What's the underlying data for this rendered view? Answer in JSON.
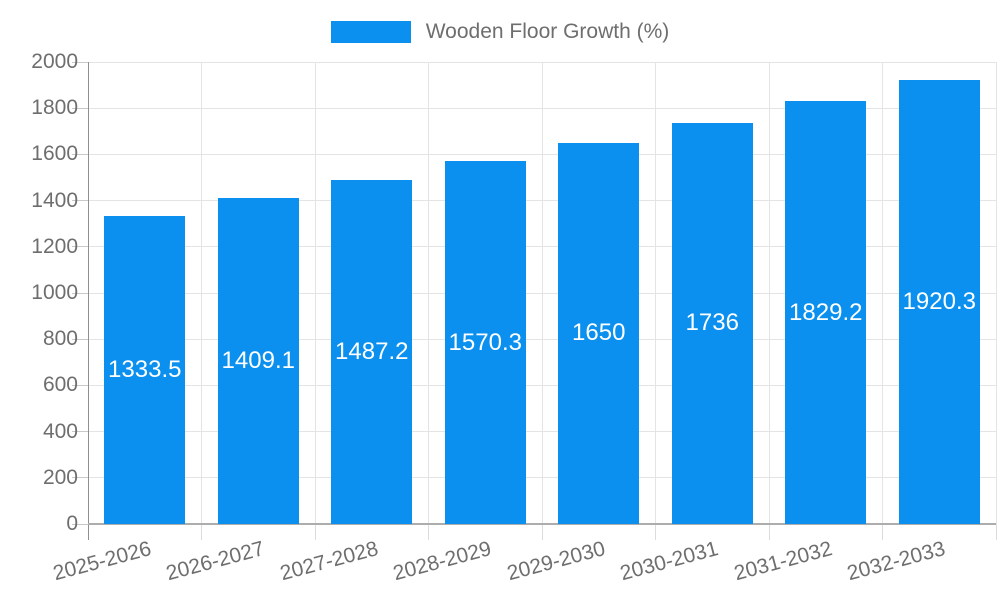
{
  "legend": {
    "label": "Wooden Floor Growth (%)"
  },
  "chart_data": {
    "type": "bar",
    "title": "",
    "xlabel": "",
    "ylabel": "",
    "series_name": "Wooden Floor Growth (%)",
    "categories": [
      "2025-2026",
      "2026-2027",
      "2027-2028",
      "2028-2029",
      "2029-2030",
      "2030-2031",
      "2031-2032",
      "2032-2033"
    ],
    "values": [
      1333.5,
      1409.1,
      1487.2,
      1570.3,
      1650,
      1736,
      1829.2,
      1920.3
    ],
    "value_labels": [
      "1333.5",
      "1409.1",
      "1487.2",
      "1570.3",
      "1650",
      "1736",
      "1829.2",
      "1920.3"
    ],
    "y_ticks": [
      0,
      200,
      400,
      600,
      800,
      1000,
      1200,
      1400,
      1600,
      1800,
      2000
    ],
    "ylim": [
      0,
      2000
    ],
    "grid": true,
    "legend_position": "top-center",
    "value_label_position": "inside-center",
    "x_tick_rotation_deg": -15,
    "colors": {
      "bar": "#0b90ef",
      "bar_label_text": "#ffffff",
      "grid": "#e4e4e4",
      "axis_line": "#8f8f8f",
      "tick_label_text": "#6e6e6e",
      "legend_text": "#6e6e6e",
      "background": "#ffffff"
    }
  }
}
